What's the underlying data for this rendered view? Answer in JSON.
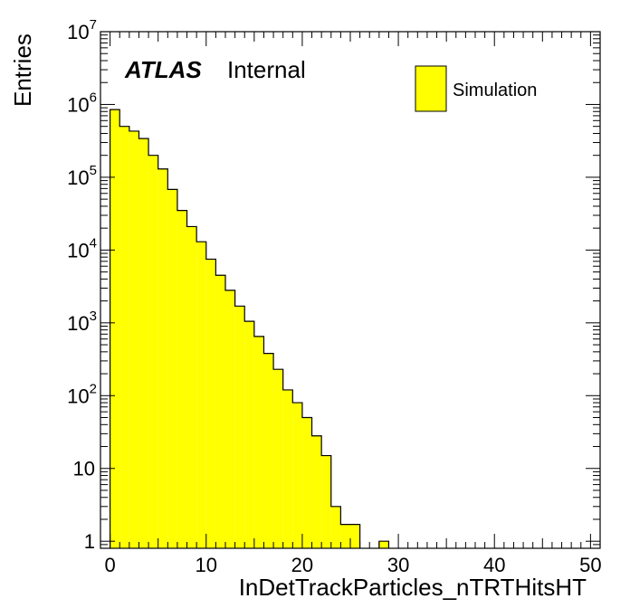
{
  "chart_data": {
    "type": "bar",
    "xlabel": "InDetTrackParticles_nTRTHitsHT",
    "ylabel": "Entries",
    "xlim": [
      -1,
      51
    ],
    "ylim": [
      0.8,
      10000000
    ],
    "yscale": "log",
    "bin_width": 1,
    "x_ticks": [
      0,
      10,
      20,
      30,
      40,
      50
    ],
    "x_tick_labels": [
      "0",
      "10",
      "20",
      "30",
      "40",
      "50"
    ],
    "y_ticks": [
      1,
      10,
      100,
      1000,
      10000,
      100000,
      1000000,
      10000000
    ],
    "y_tick_labels": [
      {
        "base": "1",
        "exp": ""
      },
      {
        "base": "10",
        "exp": ""
      },
      {
        "base": "10",
        "exp": "2"
      },
      {
        "base": "10",
        "exp": "3"
      },
      {
        "base": "10",
        "exp": "4"
      },
      {
        "base": "10",
        "exp": "5"
      },
      {
        "base": "10",
        "exp": "6"
      },
      {
        "base": "10",
        "exp": "7"
      }
    ],
    "bin_low_edges": [
      -1,
      0,
      1,
      2,
      3,
      4,
      5,
      6,
      7,
      8,
      9,
      10,
      11,
      12,
      13,
      14,
      15,
      16,
      17,
      18,
      19,
      20,
      21,
      22,
      23,
      24,
      25,
      26,
      27,
      28
    ],
    "values": [
      0,
      850000,
      500000,
      430000,
      340000,
      200000,
      130000,
      68000,
      35000,
      21000,
      13000,
      7500,
      4500,
      2800,
      1700,
      1050,
      650,
      380,
      230,
      120,
      80,
      50,
      28,
      15,
      3,
      1.7,
      1.7,
      0,
      0,
      1
    ],
    "fill_color": "#ffff00",
    "line_color": "#000000",
    "legend": {
      "position": "top-right",
      "entries": [
        {
          "name": "Simulation",
          "color": "#ffff00"
        }
      ]
    },
    "annotation": {
      "bold": "ATLAS",
      "normal": "Internal"
    }
  }
}
